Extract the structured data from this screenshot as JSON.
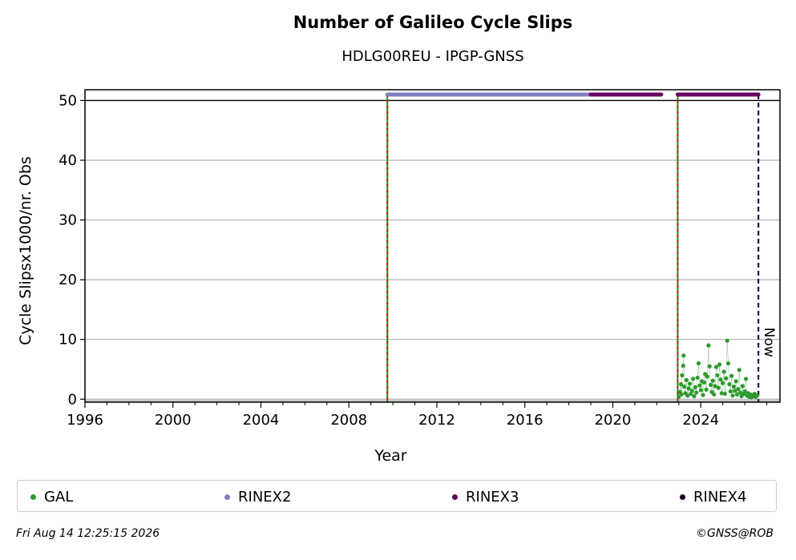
{
  "chart_data": {
    "type": "scatter",
    "title": "Number of Galileo Cycle Slips",
    "subtitle": "HDLG00REU - IPGP-GNSS",
    "xlabel": "Year",
    "ylabel": "Cycle Slipsx1000/nr. Obs",
    "xlim": [
      1996,
      2027.6
    ],
    "ylim": [
      -0.5,
      51.8
    ],
    "xticks": [
      "1996",
      "2000",
      "2004",
      "2008",
      "2012",
      "2016",
      "2020",
      "2024"
    ],
    "yticks": [
      "0",
      "10",
      "20",
      "30",
      "40",
      "50"
    ],
    "grid": "y",
    "hline_y": 50,
    "vlines": [
      {
        "x": 2009.75,
        "style": "green-red-dashed"
      },
      {
        "x": 2022.95,
        "style": "green-red-dashed"
      },
      {
        "x": 2026.62,
        "style": "navy-dashed",
        "label": "Now"
      }
    ],
    "rinex_bars": [
      {
        "name": "RINEX2",
        "start": 2009.75,
        "end": 2019.0,
        "y": 51,
        "color": "#8080c0"
      },
      {
        "name": "RINEX3",
        "start": 2019.0,
        "end": 2022.2,
        "y": 51,
        "color": "#6a0060"
      },
      {
        "name": "RINEX3",
        "start": 2022.95,
        "end": 2026.62,
        "y": 51,
        "color": "#6a0060"
      }
    ],
    "gal_series": {
      "name": "GAL",
      "color": "#2e9a2e",
      "points": [
        [
          2023.0,
          0.4
        ],
        [
          2023.05,
          1.2
        ],
        [
          2023.1,
          2.5
        ],
        [
          2023.12,
          0.8
        ],
        [
          2023.15,
          4.0
        ],
        [
          2023.2,
          5.6
        ],
        [
          2023.22,
          7.3
        ],
        [
          2023.25,
          2.1
        ],
        [
          2023.3,
          1.0
        ],
        [
          2023.35,
          3.2
        ],
        [
          2023.4,
          0.6
        ],
        [
          2023.45,
          1.8
        ],
        [
          2023.5,
          2.6
        ],
        [
          2023.55,
          0.9
        ],
        [
          2023.6,
          1.4
        ],
        [
          2023.65,
          3.4
        ],
        [
          2023.7,
          0.5
        ],
        [
          2023.75,
          2.0
        ],
        [
          2023.8,
          1.1
        ],
        [
          2023.85,
          3.6
        ],
        [
          2023.9,
          6.0
        ],
        [
          2023.95,
          2.3
        ],
        [
          2024.0,
          1.5
        ],
        [
          2024.05,
          3.0
        ],
        [
          2024.1,
          0.7
        ],
        [
          2024.15,
          2.8
        ],
        [
          2024.2,
          4.2
        ],
        [
          2024.25,
          1.6
        ],
        [
          2024.3,
          3.8
        ],
        [
          2024.35,
          9.0
        ],
        [
          2024.4,
          5.5
        ],
        [
          2024.45,
          2.4
        ],
        [
          2024.5,
          1.2
        ],
        [
          2024.55,
          3.1
        ],
        [
          2024.6,
          0.8
        ],
        [
          2024.65,
          2.2
        ],
        [
          2024.7,
          5.4
        ],
        [
          2024.75,
          4.0
        ],
        [
          2024.8,
          1.9
        ],
        [
          2024.85,
          5.8
        ],
        [
          2024.9,
          3.3
        ],
        [
          2024.95,
          1.0
        ],
        [
          2025.0,
          2.7
        ],
        [
          2025.05,
          4.6
        ],
        [
          2025.1,
          0.9
        ],
        [
          2025.15,
          3.5
        ],
        [
          2025.2,
          9.8
        ],
        [
          2025.25,
          6.0
        ],
        [
          2025.3,
          2.5
        ],
        [
          2025.35,
          1.3
        ],
        [
          2025.4,
          3.9
        ],
        [
          2025.45,
          0.6
        ],
        [
          2025.5,
          2.1
        ],
        [
          2025.55,
          1.4
        ],
        [
          2025.6,
          3.0
        ],
        [
          2025.65,
          0.8
        ],
        [
          2025.7,
          1.7
        ],
        [
          2025.75,
          4.9
        ],
        [
          2025.8,
          1.1
        ],
        [
          2025.85,
          0.5
        ],
        [
          2025.9,
          2.2
        ],
        [
          2025.95,
          0.9
        ],
        [
          2026.0,
          1.3
        ],
        [
          2026.05,
          3.4
        ],
        [
          2026.1,
          0.6
        ],
        [
          2026.15,
          1.0
        ],
        [
          2026.2,
          0.4
        ],
        [
          2026.25,
          0.8
        ],
        [
          2026.3,
          0.3
        ],
        [
          2026.35,
          0.7
        ],
        [
          2026.4,
          0.5
        ],
        [
          2026.45,
          0.9
        ],
        [
          2026.5,
          0.4
        ],
        [
          2026.55,
          0.6
        ]
      ]
    },
    "legend": [
      {
        "label": "GAL",
        "color": "#2e9a2e"
      },
      {
        "label": "RINEX2",
        "color": "#8080c0"
      },
      {
        "label": "RINEX3",
        "color": "#6a0060"
      },
      {
        "label": "RINEX4",
        "color": "#1a0022"
      }
    ],
    "legend_position": "bottom"
  },
  "footer": {
    "date": "Fri Aug 14 12:25:15 2026",
    "copyright": "©GNSS@ROB"
  }
}
